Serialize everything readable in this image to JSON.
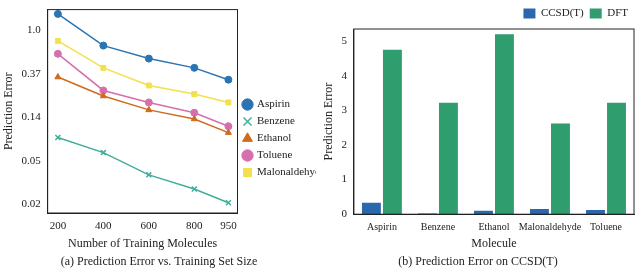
{
  "chart_data": [
    {
      "type": "line",
      "title": "(a) Prediction Error vs. Training Set Size",
      "x_label": "Number of Training Molecules",
      "y_label": "Prediction Error",
      "x": [
        200,
        400,
        600,
        800,
        950
      ],
      "series": [
        {
          "name": "Aspirin",
          "color": "#2b74b4",
          "marker": "circle",
          "values": [
            1.45,
            0.7,
            0.52,
            0.42,
            0.32
          ]
        },
        {
          "name": "Benzene",
          "color": "#3fae9b",
          "marker": "x",
          "values": [
            0.085,
            0.06,
            0.036,
            0.026,
            0.019
          ]
        },
        {
          "name": "Ethanol",
          "color": "#d06a1c",
          "marker": "triangle",
          "values": [
            0.34,
            0.22,
            0.16,
            0.13,
            0.095
          ]
        },
        {
          "name": "Toluene",
          "color": "#d66fae",
          "marker": "circle",
          "values": [
            0.58,
            0.25,
            0.19,
            0.15,
            0.11
          ]
        },
        {
          "name": "Malonaldehyde",
          "color": "#f2e14c",
          "marker": "square",
          "values": [
            0.78,
            0.42,
            0.28,
            0.23,
            0.19
          ]
        }
      ],
      "xlim": [
        155,
        990
      ],
      "xticks": [
        200,
        400,
        600,
        800,
        950
      ],
      "ylim": [
        0.015,
        1.6
      ],
      "yticks": [
        {
          "value": 0.0183,
          "label": "0.02"
        },
        {
          "value": 0.0498,
          "label": "0.05"
        },
        {
          "value": 0.1353,
          "label": "0.14"
        },
        {
          "value": 0.3679,
          "label": "0.37"
        },
        {
          "value": 1,
          "label": "1.0"
        }
      ],
      "log": "y",
      "grid": false,
      "legend": "right"
    },
    {
      "type": "bar",
      "title": "(b) Prediction Error on CCSD(T)",
      "x_label": "Molecule",
      "y_label": "Prediction Error",
      "categories": [
        "Aspirin",
        "Benzene",
        "Ethanol",
        "Malonaldehyde",
        "Toluene"
      ],
      "series": [
        {
          "name": "CCSD(T)",
          "color": "#2a68ad",
          "values": [
            0.33,
            0.02,
            0.1,
            0.15,
            0.12
          ]
        },
        {
          "name": "DFT",
          "color": "#2f9d6d",
          "values": [
            4.75,
            3.22,
            5.2,
            2.62,
            3.22
          ]
        }
      ],
      "ylim": [
        0,
        5.35
      ],
      "yticks": [
        0,
        1,
        2,
        3,
        4,
        5
      ],
      "grid": false,
      "legend": "top right"
    }
  ]
}
